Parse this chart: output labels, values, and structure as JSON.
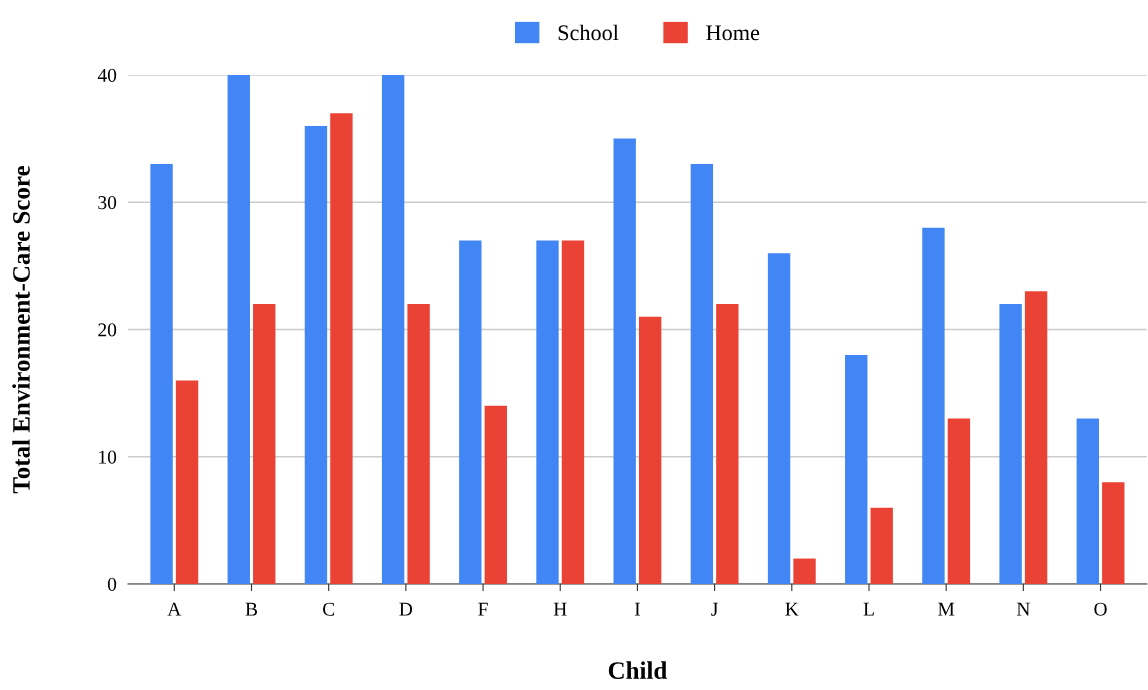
{
  "chart_data": {
    "type": "bar",
    "xlabel": "Child",
    "ylabel": "Total Environment-Care Score",
    "categories": [
      "A",
      "B",
      "C",
      "D",
      "F",
      "H",
      "I",
      "J",
      "K",
      "L",
      "M",
      "N",
      "O"
    ],
    "series": [
      {
        "name": "School",
        "color": "#4285f4",
        "values": [
          33,
          40,
          36,
          40,
          27,
          27,
          35,
          33,
          26,
          18,
          28,
          22,
          13
        ]
      },
      {
        "name": "Home",
        "color": "#ea4335",
        "values": [
          16,
          22,
          37,
          22,
          14,
          27,
          21,
          22,
          2,
          6,
          13,
          23,
          8
        ]
      }
    ],
    "ylim": [
      0,
      40
    ],
    "yticks": [
      0,
      10,
      20,
      30,
      40
    ],
    "grid": "y",
    "legend": "top"
  }
}
